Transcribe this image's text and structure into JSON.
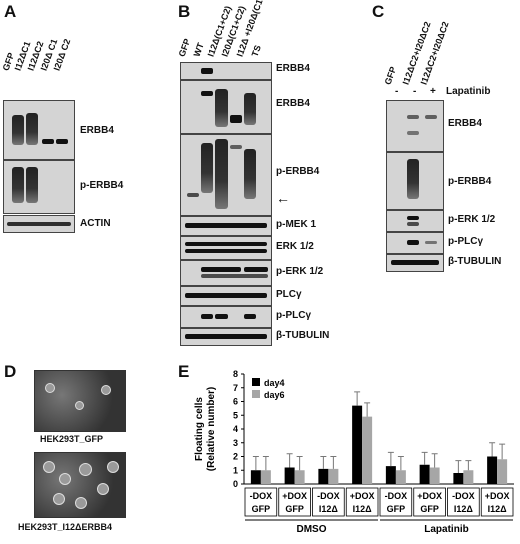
{
  "panels": {
    "a": {
      "letter": "A",
      "lanes": [
        "GFP",
        "I12ΔC1",
        "I12ΔC2",
        "I20Δ C1",
        "I20Δ C2"
      ],
      "blots": [
        "ERBB4",
        "p-ERBB4",
        "ACTIN"
      ]
    },
    "b": {
      "letter": "B",
      "lanes": [
        "GFP",
        "WT",
        "I12Δ(C1+C2)",
        "I20Δ(C1+C2)",
        "I12Δ +I20Δ(C1+C2)",
        "TS"
      ],
      "blots": [
        "ERBB4",
        "ERBB4",
        "p-ERBB4",
        "p-MEK 1",
        "ERK 1/2",
        "p-ERK 1/2",
        "PLCγ",
        "p-PLCγ",
        "β-TUBULIN"
      ],
      "arrow": "←"
    },
    "c": {
      "letter": "C",
      "lanes": [
        "GFP",
        "I12ΔC2+I20ΔC2",
        "I12ΔC2+I20ΔC2"
      ],
      "treatment_signs": [
        "-",
        "-",
        "+"
      ],
      "treatment_label": "Lapatinib",
      "blots": [
        "ERBB4",
        "p-ERBB4",
        "p-ERK 1/2",
        "p-PLCγ",
        "β-TUBULIN"
      ]
    },
    "d": {
      "letter": "D",
      "captions": [
        "HEK293T_GFP",
        "HEK293T_I12ΔERBB4"
      ]
    },
    "e": {
      "letter": "E"
    }
  },
  "chart_data": {
    "type": "bar",
    "ylabel": "Floating cells\n(Relative number)",
    "ylim": [
      0,
      8
    ],
    "yticks": [
      0,
      1,
      2,
      3,
      4,
      5,
      6,
      7,
      8
    ],
    "categories": [
      {
        "treatment": "-DOX",
        "cell": "GFP"
      },
      {
        "treatment": "+DOX",
        "cell": "GFP"
      },
      {
        "treatment": "-DOX",
        "cell": "I12Δ"
      },
      {
        "treatment": "+DOX",
        "cell": "I12Δ"
      },
      {
        "treatment": "-DOX",
        "cell": "GFP"
      },
      {
        "treatment": "+DOX",
        "cell": "GFP"
      },
      {
        "treatment": "-DOX",
        "cell": "I12Δ"
      },
      {
        "treatment": "+DOX",
        "cell": "I12Δ"
      }
    ],
    "groups": [
      {
        "name": "DMSO",
        "span": [
          0,
          3
        ]
      },
      {
        "name": "Lapatinib",
        "span": [
          4,
          7
        ]
      }
    ],
    "series": [
      {
        "name": "day4",
        "color": "#000000",
        "values": [
          1.0,
          1.2,
          1.1,
          5.7,
          1.3,
          1.4,
          0.8,
          2.0
        ],
        "errors": [
          1.0,
          1.0,
          0.9,
          1.0,
          1.0,
          0.9,
          0.9,
          1.0
        ]
      },
      {
        "name": "day6",
        "color": "#a6a6a6",
        "values": [
          1.0,
          1.0,
          1.1,
          4.9,
          1.0,
          1.2,
          1.0,
          1.8
        ],
        "errors": [
          1.0,
          1.0,
          0.9,
          1.0,
          1.0,
          1.0,
          0.7,
          1.1
        ]
      }
    ],
    "legend": "top-left"
  }
}
